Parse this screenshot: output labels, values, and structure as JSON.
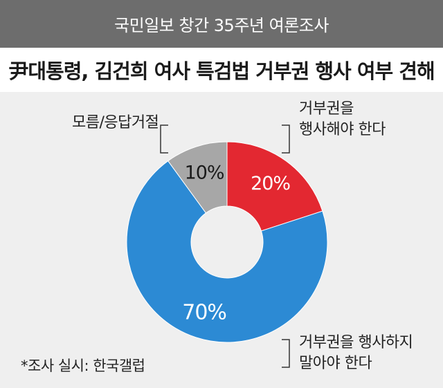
{
  "header": {
    "banner": "국민일보 창간 35주년 여론조사",
    "title": "尹대통령, 김건희 여사 특검법 거부권 행사 여부 견해"
  },
  "chart_data": {
    "type": "pie",
    "donut": true,
    "slices": [
      {
        "label": "거부권을 행사해야 한다",
        "label_lines": [
          "거부권을",
          "행사해야 한다"
        ],
        "value": 20,
        "display": "20%",
        "color": "#e32831"
      },
      {
        "label": "거부권을 행사하지 말아야 한다",
        "label_lines": [
          "거부권을 행사하지",
          "말아야 한다"
        ],
        "value": 70,
        "display": "70%",
        "color": "#2c8ad4"
      },
      {
        "label": "모름/응답거절",
        "label_lines": [
          "모름/응답거절"
        ],
        "value": 10,
        "display": "10%",
        "color": "#a7a7a7"
      }
    ]
  },
  "footnote": "*조사 실시: 한국갤럽"
}
